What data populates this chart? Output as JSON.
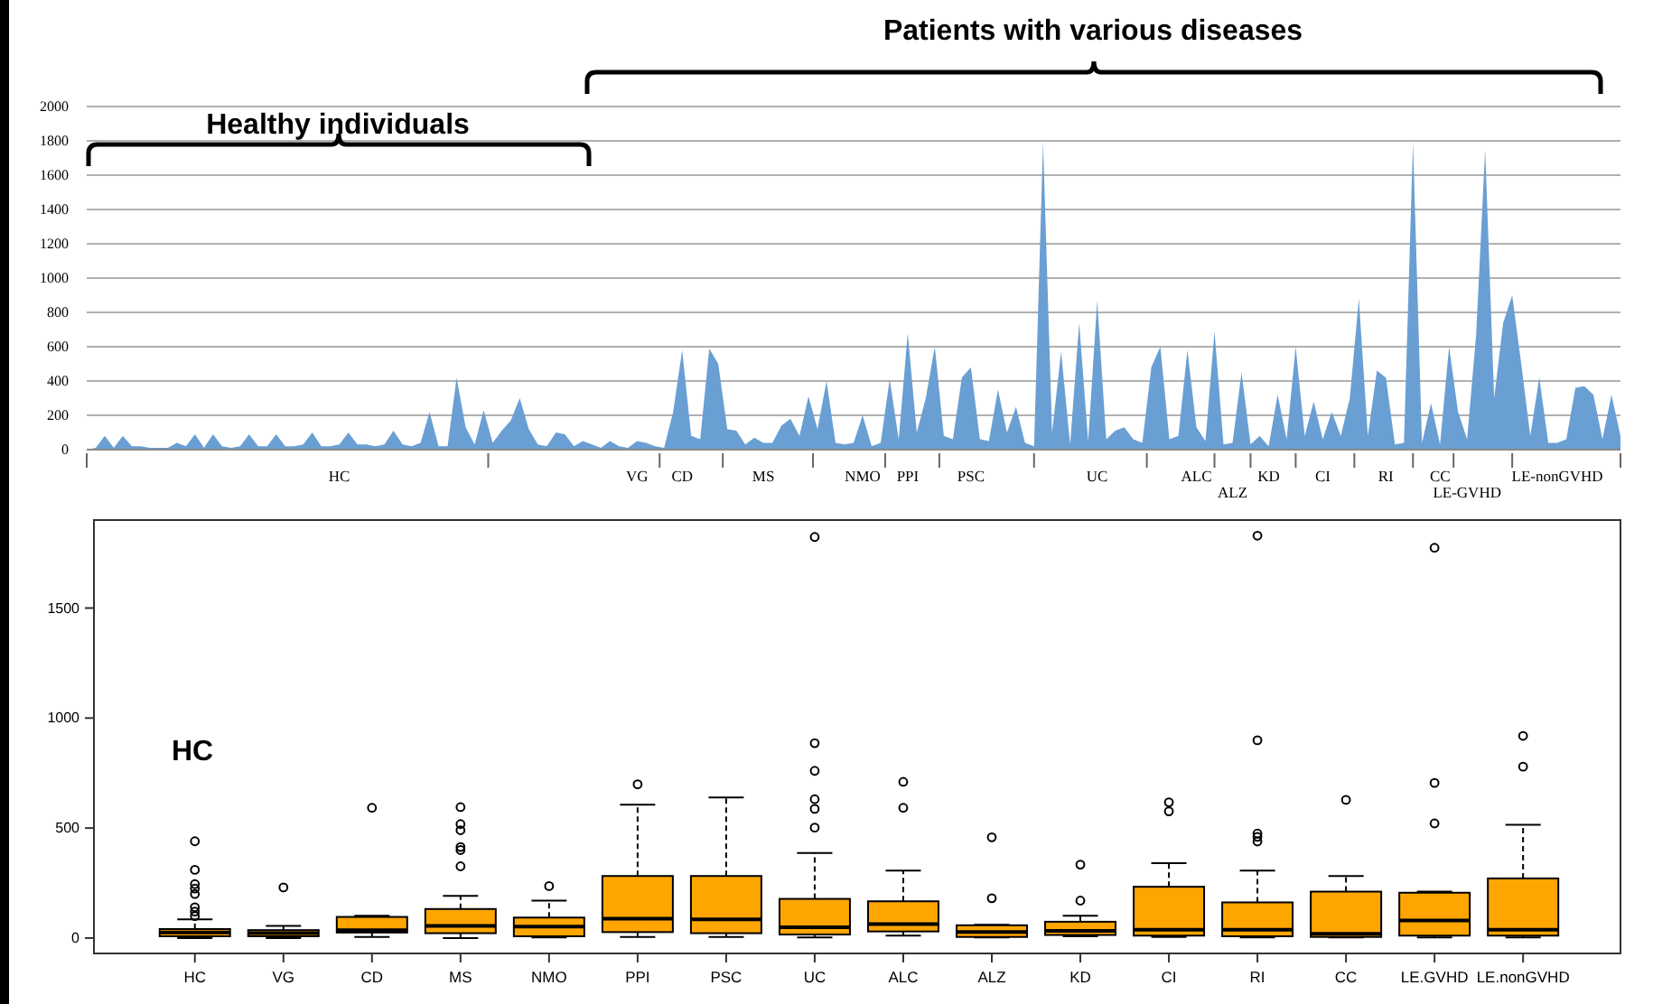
{
  "chart_data": [
    {
      "type": "area",
      "annotations": [
        "Healthy individuals",
        "Patients with various diseases"
      ],
      "categories": [
        null,
        null,
        null,
        null,
        null,
        null,
        null,
        null,
        null,
        null,
        null,
        null,
        null,
        null,
        null,
        null,
        null,
        null,
        null,
        null,
        null,
        null,
        null,
        null,
        null,
        null,
        null,
        null,
        "HC",
        null,
        null,
        null,
        null,
        null,
        null,
        null,
        null,
        null,
        null,
        null,
        null,
        null,
        null,
        null,
        null,
        null,
        null,
        null,
        null,
        null,
        null,
        null,
        null,
        null,
        null,
        null,
        null,
        null,
        null,
        null,
        null,
        "VG",
        null,
        null,
        null,
        null,
        "CD",
        null,
        null,
        null,
        null,
        null,
        null,
        null,
        null,
        "MS",
        null,
        null,
        null,
        null,
        null,
        null,
        null,
        null,
        null,
        null,
        "NMO",
        null,
        null,
        null,
        null,
        "PPI",
        null,
        null,
        null,
        null,
        null,
        null,
        "PSC",
        null,
        null,
        null,
        null,
        null,
        null,
        null,
        null,
        null,
        null,
        null,
        null,
        null,
        "UC",
        null,
        null,
        null,
        null,
        null,
        null,
        null,
        null,
        null,
        null,
        "ALC",
        null,
        null,
        null,
        "ALZ",
        null,
        null,
        null,
        "KD",
        null,
        null,
        null,
        null,
        null,
        "CI",
        null,
        null,
        null,
        null,
        null,
        null,
        "RI",
        null,
        null,
        null,
        null,
        null,
        "CC",
        null,
        null,
        "LE-GVHD",
        null,
        null,
        null,
        null,
        null,
        null,
        null,
        null,
        null,
        "LE-nonGVHD",
        null,
        null,
        null,
        null,
        null,
        null,
        null
      ],
      "ylim": [
        0,
        2000
      ],
      "yticks": [
        0,
        200,
        400,
        600,
        800,
        1000,
        1200,
        1400,
        1600,
        1800,
        2000
      ],
      "grid": "y",
      "series": [
        {
          "color": "#6a9fd4",
          "values": [
            0,
            10,
            80,
            10,
            80,
            20,
            20,
            10,
            10,
            10,
            40,
            20,
            90,
            10,
            90,
            20,
            10,
            20,
            90,
            20,
            20,
            90,
            20,
            20,
            30,
            100,
            20,
            20,
            30,
            100,
            30,
            30,
            20,
            30,
            110,
            30,
            20,
            40,
            220,
            20,
            20,
            420,
            130,
            30,
            230,
            40,
            110,
            170,
            300,
            120,
            30,
            20,
            100,
            90,
            20,
            50,
            30,
            10,
            50,
            20,
            10,
            50,
            40,
            20,
            10,
            220,
            580,
            80,
            60,
            590,
            500,
            120,
            110,
            30,
            70,
            40,
            40,
            140,
            180,
            80,
            310,
            120,
            400,
            40,
            30,
            40,
            200,
            20,
            40,
            410,
            60,
            680,
            100,
            300,
            600,
            80,
            60,
            420,
            480,
            60,
            50,
            350,
            100,
            250,
            40,
            20,
            1790,
            100,
            570,
            30,
            740,
            50,
            870,
            60,
            110,
            130,
            60,
            40,
            480,
            600,
            60,
            80,
            580,
            130,
            50,
            690,
            30,
            40,
            450,
            30,
            80,
            20,
            320,
            60,
            600,
            80,
            280,
            60,
            220,
            80,
            300,
            880,
            80,
            460,
            420,
            30,
            40,
            1790,
            40,
            270,
            30,
            600,
            220,
            60,
            670,
            1750,
            300,
            740,
            900,
            500,
            80,
            420,
            40,
            40,
            60,
            360,
            370,
            320,
            60,
            320,
            80
          ]
        }
      ]
    },
    {
      "type": "box",
      "annotations": [
        "HC"
      ],
      "categories": [
        "HC",
        "VG",
        "CD",
        "MS",
        "NMO",
        "PPI",
        "PSC",
        "UC",
        "ALC",
        "ALZ",
        "KD",
        "CI",
        "RI",
        "CC",
        "LE.GVHD",
        "LE.nonGVHD"
      ],
      "ylim": [
        -70,
        1900
      ],
      "yticks": [
        0,
        500,
        1000,
        1500
      ],
      "series": [
        {
          "color": "#ffa500",
          "boxes": [
            {
              "low": 0,
              "q1": 8,
              "median": 25,
              "q3": 41,
              "high": 85,
              "outliers": [
                100,
                120,
                140,
                200,
                225,
                245,
                310,
                440
              ]
            },
            {
              "low": 0,
              "q1": 8,
              "median": 22,
              "q3": 36,
              "high": 55,
              "outliers": [
                230
              ]
            },
            {
              "low": 5,
              "q1": 25,
              "median": 36,
              "q3": 96,
              "high": 101,
              "outliers": [
                592
              ]
            },
            {
              "low": 0,
              "q1": 22,
              "median": 55,
              "q3": 132,
              "high": 192,
              "outliers": [
                326,
                400,
                414,
                490,
                518,
                595
              ]
            },
            {
              "low": 3,
              "q1": 8,
              "median": 52,
              "q3": 93,
              "high": 170,
              "outliers": [
                236
              ]
            },
            {
              "low": 5,
              "q1": 27,
              "median": 88,
              "q3": 282,
              "high": 606,
              "outliers": [
                699
              ]
            },
            {
              "low": 5,
              "q1": 22,
              "median": 85,
              "q3": 282,
              "high": 639
            },
            {
              "low": 3,
              "q1": 16,
              "median": 49,
              "q3": 178,
              "high": 387,
              "outliers": [
                502,
                587,
                631,
                760,
                886,
                1823
              ]
            },
            {
              "low": 11,
              "q1": 30,
              "median": 63,
              "q3": 167,
              "high": 307,
              "outliers": [
                592,
                710
              ]
            },
            {
              "low": 3,
              "q1": 5,
              "median": 27,
              "q3": 58,
              "high": 60,
              "outliers": [
                181,
                458
              ]
            },
            {
              "low": 8,
              "q1": 14,
              "median": 33,
              "q3": 74,
              "high": 101,
              "outliers": [
                170,
                334
              ]
            },
            {
              "low": 5,
              "q1": 11,
              "median": 38,
              "q3": 233,
              "high": 340,
              "outliers": [
                576,
                617
              ]
            },
            {
              "low": 3,
              "q1": 8,
              "median": 38,
              "q3": 162,
              "high": 307,
              "outliers": [
                439,
                460,
                475,
                899,
                1829
              ]
            },
            {
              "low": 3,
              "q1": 5,
              "median": 19,
              "q3": 211,
              "high": 282,
              "outliers": [
                628
              ]
            },
            {
              "low": 3,
              "q1": 11,
              "median": 80,
              "q3": 206,
              "high": 211,
              "outliers": [
                521,
                705,
                1774
              ]
            },
            {
              "low": 3,
              "q1": 11,
              "median": 38,
              "q3": 271,
              "high": 515,
              "outliers": [
                779,
                919
              ]
            }
          ]
        }
      ]
    }
  ]
}
